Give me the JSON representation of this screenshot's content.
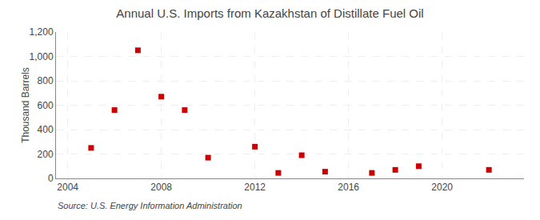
{
  "chart_data": {
    "type": "scatter",
    "title": "Annual U.S. Imports from Kazakhstan of Distillate Fuel Oil",
    "ylabel": "Thousand Barrels",
    "annotations": [
      "Source: U.S. Energy Information Administration"
    ],
    "x": [
      2005,
      2006,
      2007,
      2008,
      2009,
      2010,
      2012,
      2013,
      2014,
      2015,
      2017,
      2018,
      2019,
      2022
    ],
    "values": [
      250,
      560,
      1050,
      670,
      560,
      170,
      260,
      45,
      190,
      55,
      45,
      70,
      100,
      70
    ],
    "color": "#cc0000",
    "marker": "square",
    "xlim": [
      2003.5,
      2023.5
    ],
    "xticks": [
      2004,
      2008,
      2012,
      2016,
      2020
    ],
    "ylim": [
      0,
      1200
    ],
    "yticks": [
      0,
      200,
      400,
      600,
      800,
      {
        "value": 1000,
        "label": "1,000"
      },
      {
        "value": 1200,
        "label": "1,200"
      }
    ],
    "grid": true
  }
}
